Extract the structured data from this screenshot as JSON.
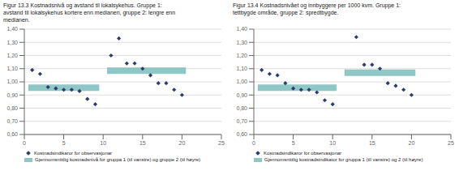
{
  "chart_data": [
    {
      "type": "scatter",
      "title": "Figur 13.3 Kostnadsnivå og avstand til lokalsykehus. Gruppe 1:\navstand til lokalsykehus kortere enn medianen, gruppe 2: lengre enn\nmedianen.",
      "series": [
        {
          "name": "Gjennomsnittlig kostnadsnivå for gruppa 1 (til vanstre) og gruppe 2 (til høyre)",
          "type": "line",
          "line_style": "solid",
          "color": "#7bbcbc",
          "segments": [
            {
              "x": [
                0.5,
                9.5
              ],
              "values": [
                0.955,
                0.955
              ]
            },
            {
              "x": [
                10.5,
                20.5
              ],
              "values": [
                1.085,
                1.085
              ]
            }
          ]
        },
        {
          "name": "Kostnadsindikaror for observasjonar",
          "type": "scatter",
          "marker": "diamond",
          "color": "#2d3d6b",
          "x": [
            1,
            2,
            3,
            4,
            5,
            6,
            7,
            8,
            9,
            11,
            12,
            13,
            14,
            15,
            16,
            17,
            18,
            19,
            20
          ],
          "values": [
            1.09,
            1.06,
            0.96,
            0.95,
            0.94,
            0.94,
            0.93,
            0.87,
            0.83,
            1.2,
            1.33,
            1.14,
            1.14,
            1.1,
            1.05,
            0.99,
            0.99,
            0.94,
            0.9
          ]
        }
      ],
      "legend_order": [
        "Kostnadsindikaror for observasjonar",
        "Gjennomsnittlig kostnadsnivå for gruppa 1 (til vanstre) og gruppe 2 (til høyre)"
      ],
      "xlim": [
        0,
        25
      ],
      "xticks": [
        0,
        5,
        10,
        15,
        20,
        25
      ],
      "ylim": [
        0.6,
        1.4
      ],
      "yticks": [
        {
          "value": 0.6,
          "label": "0,60"
        },
        {
          "value": 0.7,
          "label": "0,70"
        },
        {
          "value": 0.8,
          "label": "0,80"
        },
        {
          "value": 0.9,
          "label": "0,90"
        },
        {
          "value": 1.0,
          "label": "1,00"
        },
        {
          "value": 1.1,
          "label": "1,10"
        },
        {
          "value": 1.2,
          "label": "1,20"
        },
        {
          "value": 1.3,
          "label": "1,30"
        },
        {
          "value": 1.4,
          "label": "1,40"
        }
      ],
      "grid": "y"
    },
    {
      "type": "scatter",
      "title": "Figur 13.4 Kostnadsnivået og innbyggere per 1000 kvm. Gruppe 1:\ntettbygde område, gruppe 2: spredtbygde.",
      "series": [
        {
          "name": "Gjennomsnittlig kostnadsindikator for gruppa 1 (til vanstre) og 2 (til høyre)",
          "type": "line",
          "line_style": "solid",
          "color": "#7bbcbc",
          "segments": [
            {
              "x": [
                0.5,
                10.5
              ],
              "values": [
                0.955,
                0.955
              ]
            },
            {
              "x": [
                11.5,
                20.5
              ],
              "values": [
                1.07,
                1.07
              ]
            }
          ]
        },
        {
          "name": "Kostnadsindikaror for observasjonar",
          "type": "scatter",
          "marker": "diamond",
          "color": "#2d3d6b",
          "x": [
            1,
            2,
            3,
            4,
            5,
            6,
            7,
            8,
            9,
            10,
            13,
            14,
            15,
            16,
            17,
            18,
            19,
            20
          ],
          "values": [
            1.09,
            1.06,
            1.05,
            0.99,
            0.95,
            0.94,
            0.94,
            0.92,
            0.86,
            0.83,
            1.34,
            1.13,
            1.13,
            1.1,
            0.99,
            0.97,
            0.94,
            0.9
          ]
        }
      ],
      "legend_order": [
        "Kostnadsindikaror for observasjonar",
        "Gjennomsnittlig kostnadsindikator for gruppa 1 (til vanstre) og 2 (til høyre)"
      ],
      "xlim": [
        0,
        25
      ],
      "xticks": [
        0,
        5,
        10,
        15,
        20,
        25
      ],
      "ylim": [
        0.6,
        1.4
      ],
      "yticks": [
        {
          "value": 0.6,
          "label": "0,60"
        },
        {
          "value": 0.7,
          "label": "0,70"
        },
        {
          "value": 0.8,
          "label": "0,80"
        },
        {
          "value": 0.9,
          "label": "0,90"
        },
        {
          "value": 1.0,
          "label": "1,00"
        },
        {
          "value": 1.1,
          "label": "1,10"
        },
        {
          "value": 1.2,
          "label": "1,20"
        },
        {
          "value": 1.3,
          "label": "1,30"
        },
        {
          "value": 1.4,
          "label": "1,40"
        }
      ],
      "grid": "y"
    }
  ]
}
